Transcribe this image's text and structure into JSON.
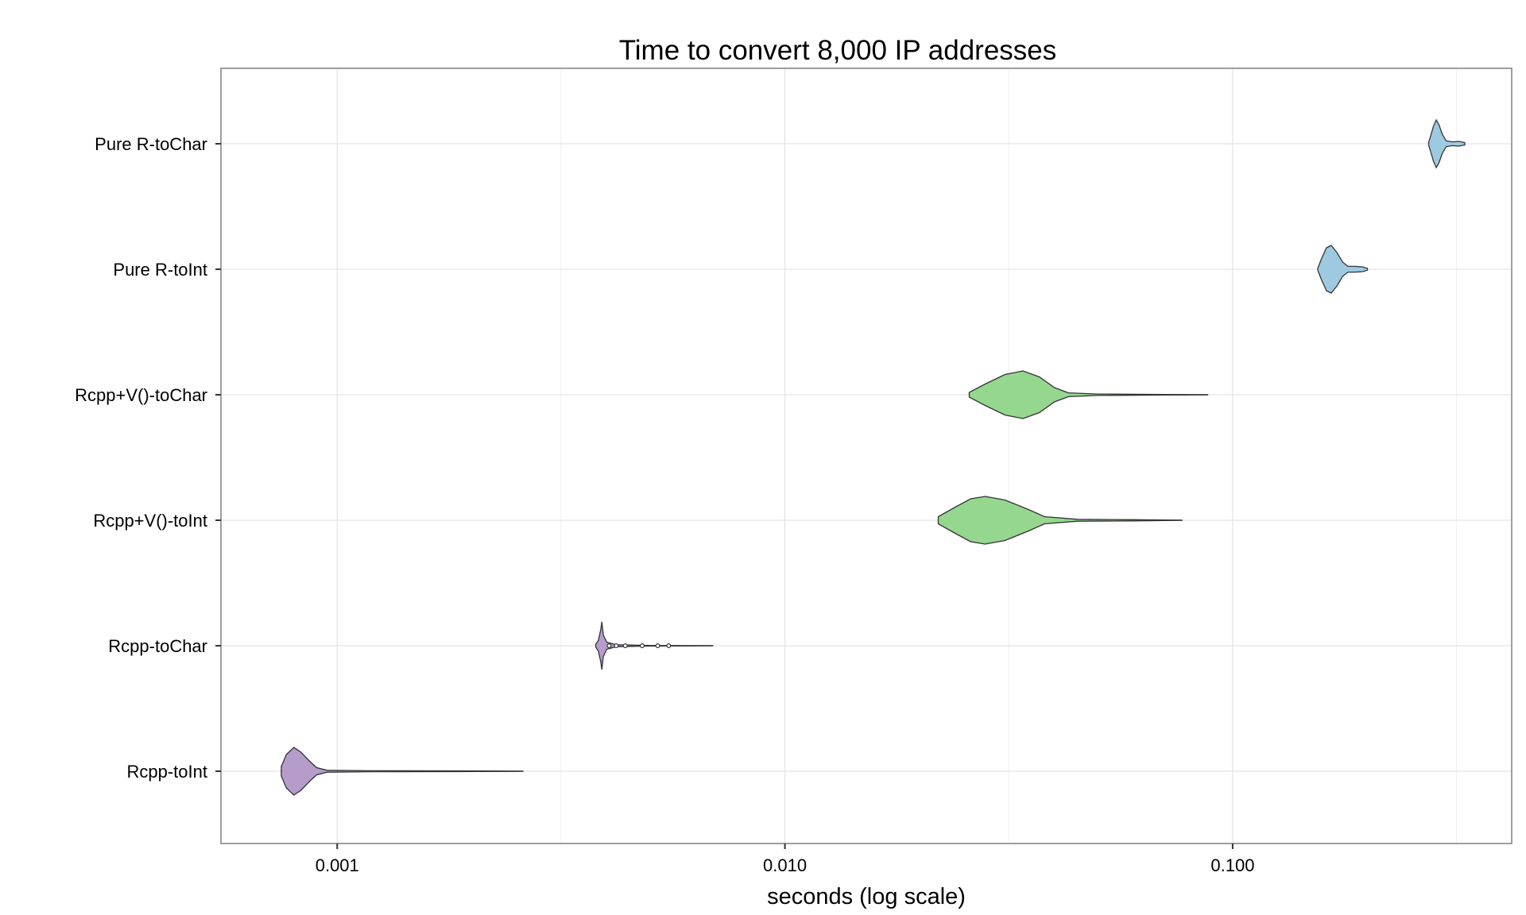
{
  "chart_data": {
    "type": "violin",
    "title": "Time to convert 8,000 IP addresses",
    "xlabel": "seconds (log scale)",
    "ylabel": "",
    "x_scale": "log10",
    "xlim": [
      0.00055,
      0.42
    ],
    "x_ticks": [
      0.001,
      0.01,
      0.1
    ],
    "x_tick_labels": [
      "0.001",
      "0.010",
      "0.100"
    ],
    "grid": true,
    "legend": "none",
    "categories": [
      "Pure R-toChar",
      "Pure R-toInt",
      "Rcpp+V()-toChar",
      "Rcpp+V()-toInt",
      "Rcpp-toChar",
      "Rcpp-toInt"
    ],
    "series": [
      {
        "category": "Pure R-toChar",
        "color": "#9ecae1",
        "min": 0.274,
        "max": 0.33,
        "mode": 0.285,
        "profile": [
          [
            0.274,
            0.05
          ],
          [
            0.277,
            0.35
          ],
          [
            0.281,
            0.75
          ],
          [
            0.285,
            1.0
          ],
          [
            0.289,
            0.8
          ],
          [
            0.294,
            0.4
          ],
          [
            0.3,
            0.12
          ],
          [
            0.31,
            0.08
          ],
          [
            0.32,
            0.1
          ],
          [
            0.33,
            0.05
          ]
        ],
        "outliers": []
      },
      {
        "category": "Pure R-toInt",
        "color": "#9ecae1",
        "min": 0.155,
        "max": 0.2,
        "mode": 0.164,
        "profile": [
          [
            0.155,
            0.05
          ],
          [
            0.158,
            0.45
          ],
          [
            0.162,
            0.9
          ],
          [
            0.166,
            1.0
          ],
          [
            0.171,
            0.7
          ],
          [
            0.176,
            0.3
          ],
          [
            0.181,
            0.12
          ],
          [
            0.188,
            0.12
          ],
          [
            0.195,
            0.1
          ],
          [
            0.2,
            0.04
          ]
        ],
        "outliers": []
      },
      {
        "category": "Rcpp+V()-toChar",
        "color": "#95d78e",
        "min": 0.0258,
        "max": 0.088,
        "mode": 0.033,
        "profile": [
          [
            0.0258,
            0.1
          ],
          [
            0.028,
            0.45
          ],
          [
            0.031,
            0.85
          ],
          [
            0.034,
            1.0
          ],
          [
            0.037,
            0.75
          ],
          [
            0.04,
            0.3
          ],
          [
            0.043,
            0.08
          ],
          [
            0.05,
            0.03
          ],
          [
            0.07,
            0.015
          ],
          [
            0.088,
            0.005
          ]
        ],
        "outliers": []
      },
      {
        "category": "Rcpp+V()-toInt",
        "color": "#95d78e",
        "min": 0.022,
        "max": 0.077,
        "mode": 0.027,
        "profile": [
          [
            0.022,
            0.15
          ],
          [
            0.024,
            0.55
          ],
          [
            0.026,
            0.9
          ],
          [
            0.028,
            1.0
          ],
          [
            0.031,
            0.85
          ],
          [
            0.035,
            0.45
          ],
          [
            0.038,
            0.15
          ],
          [
            0.045,
            0.04
          ],
          [
            0.06,
            0.025
          ],
          [
            0.077,
            0.005
          ]
        ],
        "outliers": []
      },
      {
        "category": "Rcpp-toChar",
        "color": "#b59ccb",
        "min": 0.00378,
        "max": 0.0069,
        "mode": 0.0039,
        "profile": [
          [
            0.00378,
            0.06
          ],
          [
            0.00383,
            0.22
          ],
          [
            0.00388,
            0.7
          ],
          [
            0.0039,
            1.0
          ],
          [
            0.00393,
            0.45
          ],
          [
            0.004,
            0.15
          ],
          [
            0.0042,
            0.04
          ],
          [
            0.005,
            0.01
          ],
          [
            0.0069,
            0.005
          ]
        ],
        "outliers": [
          0.00405,
          0.0042,
          0.0044,
          0.0048,
          0.0052,
          0.0055
        ]
      },
      {
        "category": "Rcpp-toInt",
        "color": "#b59ccb",
        "min": 0.00075,
        "max": 0.0026,
        "mode": 0.0008,
        "profile": [
          [
            0.00075,
            0.2
          ],
          [
            0.00077,
            0.7
          ],
          [
            0.0008,
            1.0
          ],
          [
            0.00083,
            0.8
          ],
          [
            0.00087,
            0.4
          ],
          [
            0.0009,
            0.15
          ],
          [
            0.00095,
            0.04
          ],
          [
            0.0012,
            0.02
          ],
          [
            0.0018,
            0.015
          ],
          [
            0.0026,
            0.005
          ]
        ],
        "outliers": []
      }
    ]
  }
}
